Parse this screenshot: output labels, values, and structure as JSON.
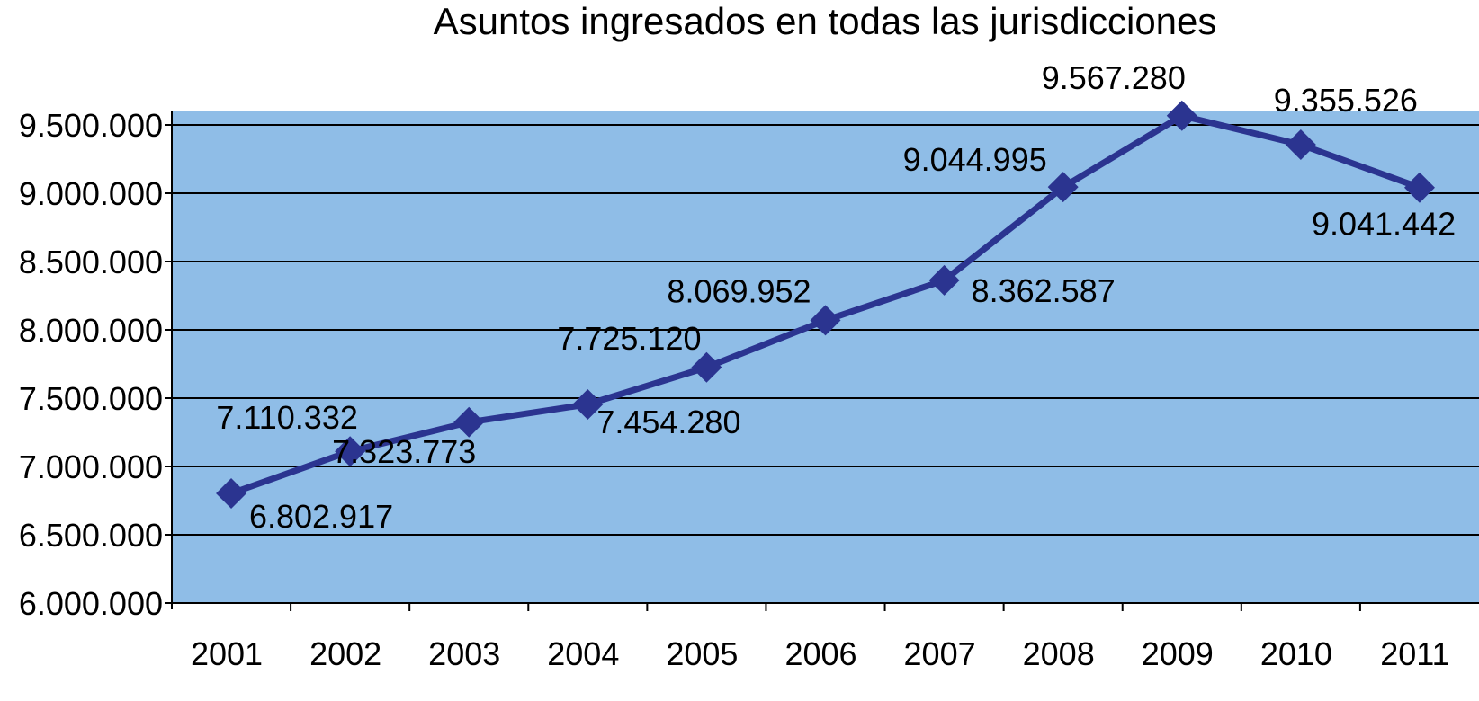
{
  "chart_data": {
    "type": "line",
    "title": "Asuntos ingresados en todas las jurisdicciones",
    "xlabel": "",
    "ylabel": "",
    "categories": [
      "2001",
      "2002",
      "2003",
      "2004",
      "2005",
      "2006",
      "2007",
      "2008",
      "2009",
      "2010",
      "2011"
    ],
    "series": [
      {
        "values": [
          6802917,
          7110332,
          7323773,
          7454280,
          7725120,
          8069952,
          8362587,
          9044995,
          9567280,
          9355526,
          9041442
        ],
        "data_labels": [
          "6.802.917",
          "7.110.332",
          "7.323.773",
          "7.454.280",
          "7.725.120",
          "8.069.952",
          "8.362.587",
          "9.044.995",
          "9.567.280",
          "9.355.526",
          "9.041.442"
        ]
      }
    ],
    "ylim": [
      6000000,
      9500000
    ],
    "yticks": [
      6000000,
      6500000,
      7000000,
      7500000,
      8000000,
      8500000,
      9000000,
      9500000
    ],
    "ytick_labels": [
      "6.000.000",
      "6.500.000",
      "7.000.000",
      "7.500.000",
      "8.000.000",
      "8.500.000",
      "9.000.000",
      "9.500.000"
    ],
    "grid": true,
    "legend": "none",
    "colors": {
      "plot_background": "#8fbde7",
      "line": "#2b3490",
      "marker": "#2b3490",
      "gridline": "#000000",
      "axis": "#000000"
    }
  }
}
